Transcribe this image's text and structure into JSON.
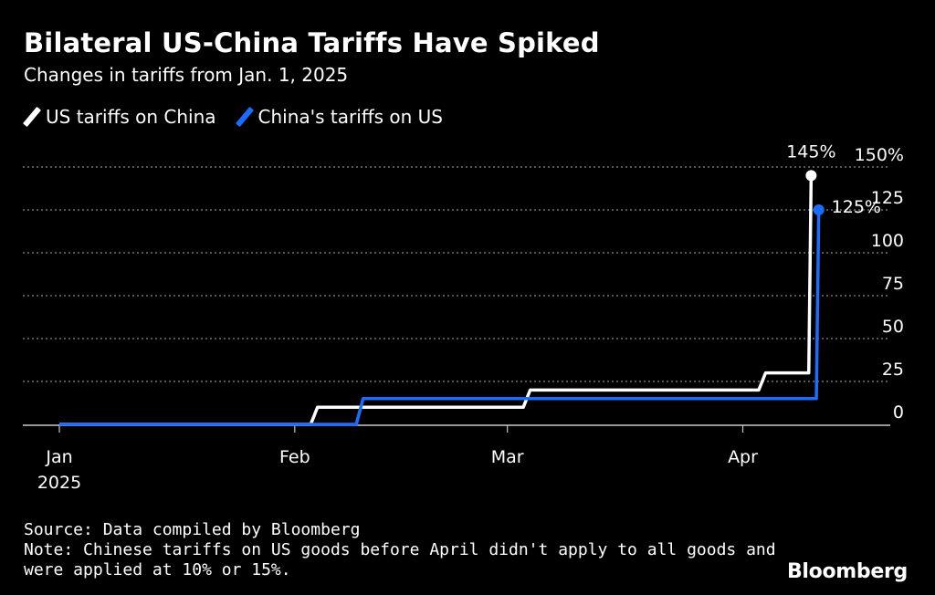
{
  "title": "Bilateral US-China Tariffs Have Spiked",
  "subtitle": "Changes in tariffs from Jan. 1, 2025",
  "legend": [
    {
      "label": "US tariffs on China",
      "color": "#ffffff"
    },
    {
      "label": "China's tariffs on US",
      "color": "#1a6dff"
    }
  ],
  "chart_data": {
    "type": "line",
    "line_shape": "step",
    "grid": "horizontal-dotted",
    "y_axis_side": "right",
    "ylim": [
      0,
      150
    ],
    "y_ticks": [
      0,
      25,
      50,
      75,
      100,
      125,
      150
    ],
    "y_tick_labels": [
      "0",
      "25",
      "50",
      "75",
      "100",
      "125",
      "150%"
    ],
    "x_ticks": [
      {
        "date": "2025-01-01",
        "label": "Jan",
        "sublabel": "2025"
      },
      {
        "date": "2025-02-01",
        "label": "Feb",
        "sublabel": ""
      },
      {
        "date": "2025-03-01",
        "label": "Mar",
        "sublabel": ""
      },
      {
        "date": "2025-04-01",
        "label": "Apr",
        "sublabel": ""
      }
    ],
    "xlim": [
      "2025-01-01",
      "2025-04-12"
    ],
    "series": [
      {
        "name": "US tariffs on China",
        "color": "#ffffff",
        "end_label": "145%",
        "points": [
          {
            "x": "2025-01-01",
            "y": 0
          },
          {
            "x": "2025-02-04",
            "y": 10
          },
          {
            "x": "2025-03-04",
            "y": 20
          },
          {
            "x": "2025-04-02",
            "y": 20
          },
          {
            "x": "2025-04-04",
            "y": 30
          },
          {
            "x": "2025-04-09",
            "y": 30
          },
          {
            "x": "2025-04-10",
            "y": 145
          }
        ]
      },
      {
        "name": "China's tariffs on US",
        "color": "#1a6dff",
        "end_label": "125%",
        "points": [
          {
            "x": "2025-01-01",
            "y": 0
          },
          {
            "x": "2025-02-10",
            "y": 15
          },
          {
            "x": "2025-04-10",
            "y": 15
          },
          {
            "x": "2025-04-11",
            "y": 125
          }
        ]
      }
    ]
  },
  "footer": {
    "source": "Source: Data compiled by Bloomberg",
    "note_line1": "Note: Chinese tariffs on US goods before April didn't apply to all goods and",
    "note_line2": "were applied at 10% or 15%."
  },
  "brand": "Bloomberg"
}
